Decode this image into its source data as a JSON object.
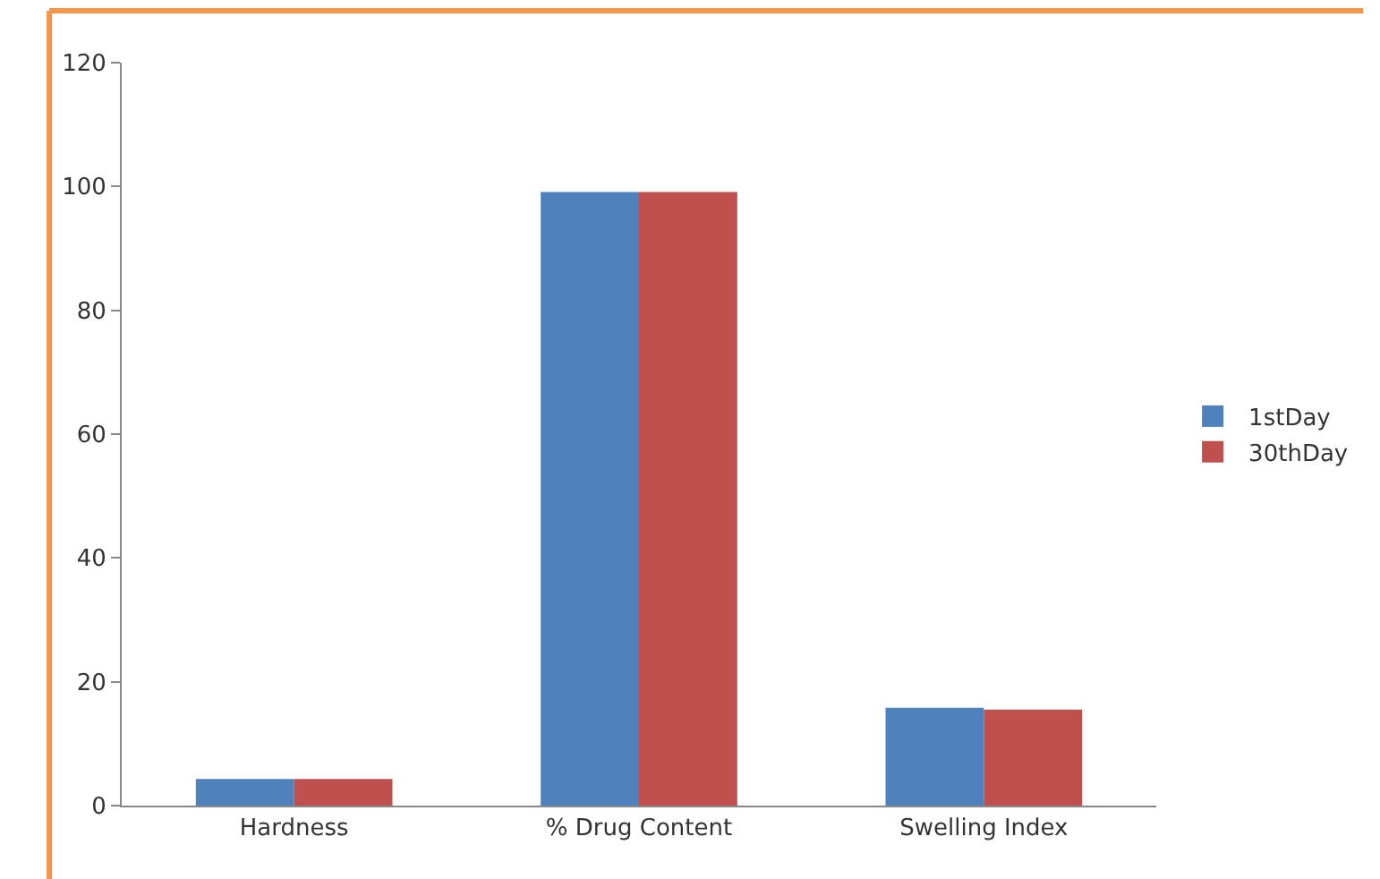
{
  "chart_data": {
    "type": "bar",
    "categories": [
      "Hardness",
      "% Drug Content",
      "Swelling Index"
    ],
    "series": [
      {
        "name": "1stDay",
        "color": "#4f81bd",
        "values": [
          4.3,
          99.1,
          15.8
        ]
      },
      {
        "name": "30thDay",
        "color": "#c0504d",
        "values": [
          4.3,
          99.1,
          15.5
        ]
      }
    ],
    "ylim": [
      0,
      120
    ],
    "yticks": [
      0,
      20,
      40,
      60,
      80,
      100,
      120
    ],
    "legend": "right"
  }
}
